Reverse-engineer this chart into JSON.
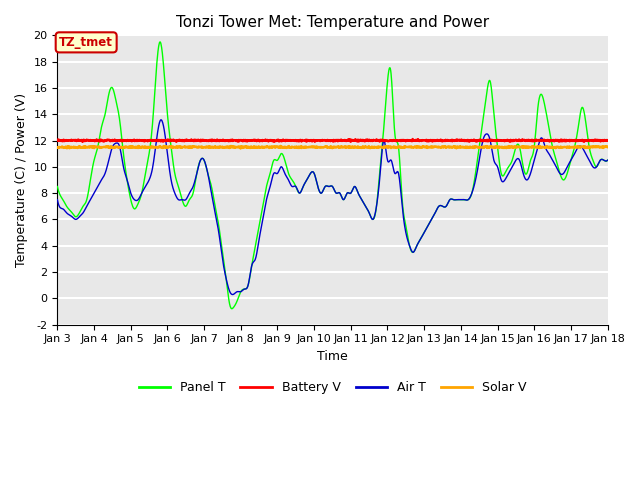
{
  "title": "Tonzi Tower Met: Temperature and Power",
  "xlabel": "Time",
  "ylabel": "Temperature (C) / Power (V)",
  "ylim": [
    -2,
    20
  ],
  "xlim": [
    3,
    18
  ],
  "xtick_labels": [
    "Jan 3",
    "Jan 4",
    "Jan 5",
    "Jan 6",
    "Jan 7",
    "Jan 8",
    "Jan 9",
    "Jan 10",
    "Jan 11",
    "Jan 12",
    "Jan 13",
    "Jan 14",
    "Jan 15",
    "Jan 16",
    "Jan 17",
    "Jan 18"
  ],
  "ytick_labels": [
    "-2",
    "0",
    "2",
    "4",
    "6",
    "8",
    "10",
    "12",
    "14",
    "16",
    "18",
    "20"
  ],
  "battery_v_value": 12.0,
  "solar_v_value": 11.5,
  "panel_t_color": "#00ff00",
  "battery_v_color": "#ff0000",
  "air_t_color": "#0000cc",
  "solar_v_color": "#ffa500",
  "annotation_text": "TZ_tmet",
  "annotation_color": "#cc0000",
  "annotation_bg": "#ffffcc",
  "plot_bg_color": "#e8e8e8",
  "legend_labels": [
    "Panel T",
    "Battery V",
    "Air T",
    "Solar V"
  ],
  "title_fontsize": 11,
  "axis_fontsize": 9,
  "tick_fontsize": 8,
  "ytick_values": [
    -2,
    0,
    2,
    4,
    6,
    8,
    10,
    12,
    14,
    16,
    18,
    20
  ]
}
